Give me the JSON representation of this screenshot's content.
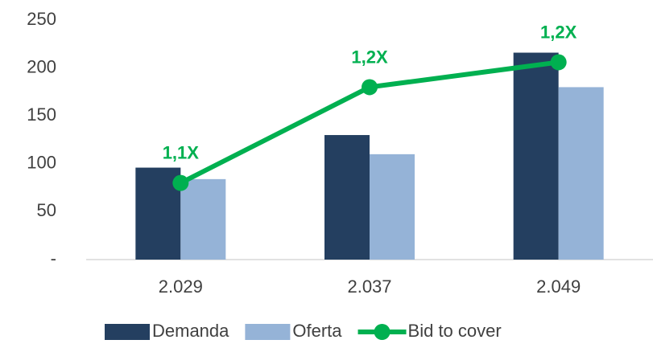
{
  "chart_data": {
    "type": "bar",
    "categories": [
      "2.029",
      "2.037",
      "2.049"
    ],
    "series": [
      {
        "name": "Demanda",
        "color": "#243f60",
        "values": [
          96,
          130,
          216
        ]
      },
      {
        "name": "Oferta",
        "color": "#95b3d7",
        "values": [
          84,
          110,
          180
        ]
      },
      {
        "name": "Bid to cover",
        "type": "line",
        "axis": "y2",
        "color": "#00b050",
        "values": [
          1.14,
          1.19,
          1.203
        ],
        "value_labels": [
          "1,1X",
          "1,2X",
          "1,2X"
        ]
      }
    ],
    "ylim": [
      0,
      250
    ],
    "yticks": [
      {
        "value": 0,
        "label": "-"
      },
      50,
      100,
      150,
      200,
      250
    ],
    "y2lim": [
      1.1,
      1.225
    ],
    "legend": "bottom"
  }
}
